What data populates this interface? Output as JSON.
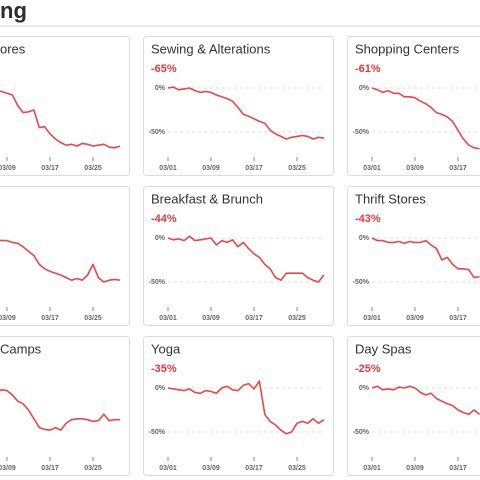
{
  "title": "ng",
  "chart_data": [
    {
      "type": "line",
      "title": "ores",
      "color": "#e8474c",
      "ylim": [
        -70,
        10
      ],
      "categories": [
        null,
        null,
        null,
        null,
        null,
        null,
        null,
        null,
        "03/09",
        null,
        null,
        null,
        null,
        null,
        null,
        null,
        "03/17",
        null,
        null,
        null,
        null,
        null,
        null,
        null,
        "03/25",
        null,
        null,
        null,
        null,
        null
      ],
      "values": [
        0,
        -1,
        -2,
        -1,
        0,
        -2,
        -3,
        -4,
        -6,
        -8,
        -20,
        -28,
        -27,
        -25,
        -45,
        -44,
        -52,
        -58,
        -62,
        -65,
        -64,
        -66,
        -63,
        -64,
        -66,
        -65,
        -64,
        -67,
        -68,
        -66
      ]
    },
    {
      "type": "line",
      "title": "Sewing & Alterations",
      "subtitle": "-65%",
      "color": "#e8474c",
      "ylim": [
        -70,
        10
      ],
      "yticks": [
        {
          "value": 0,
          "label": "0%"
        },
        {
          "value": -50,
          "label": "-50%"
        }
      ],
      "categories": [
        "03/01",
        null,
        null,
        null,
        null,
        null,
        null,
        null,
        "03/09",
        null,
        null,
        null,
        null,
        null,
        null,
        null,
        "03/17",
        null,
        null,
        null,
        null,
        null,
        null,
        null,
        "03/25",
        null,
        null,
        null,
        null,
        null
      ],
      "values": [
        0,
        1,
        -2,
        -1,
        0,
        -3,
        -5,
        -4,
        -5,
        -8,
        -10,
        -12,
        -15,
        -22,
        -30,
        -32,
        -35,
        -38,
        -40,
        -48,
        -52,
        -55,
        -58,
        -56,
        -55,
        -54,
        -55,
        -58,
        -56,
        -57
      ]
    },
    {
      "type": "line",
      "title": "Shopping Centers",
      "subtitle": "-61%",
      "color": "#e8474c",
      "ylim": [
        -70,
        10
      ],
      "yticks": [
        {
          "value": 0,
          "label": "0%"
        },
        {
          "value": -50,
          "label": "-50%"
        }
      ],
      "categories": [
        "03/01",
        null,
        null,
        null,
        null,
        null,
        null,
        null,
        "03/09",
        null,
        null,
        null,
        null,
        null,
        null,
        null,
        "03/17",
        null,
        null,
        null,
        null
      ],
      "values": [
        0,
        -2,
        -5,
        -3,
        -6,
        -6,
        -10,
        -10,
        -11,
        -15,
        -18,
        -22,
        -28,
        -30,
        -33,
        -38,
        -48,
        -58,
        -65,
        -68,
        -69
      ]
    },
    {
      "type": "line",
      "color": "#e8474c",
      "ylim": [
        -70,
        10
      ],
      "categories": [
        null,
        null,
        null,
        null,
        null,
        null,
        null,
        null,
        "03/09",
        null,
        null,
        null,
        null,
        null,
        null,
        null,
        "03/17",
        null,
        null,
        null,
        null,
        null,
        null,
        null,
        "03/25",
        null,
        null,
        null,
        null,
        null
      ],
      "values": [
        0,
        0,
        -1,
        -1,
        0,
        -2,
        -2,
        -3,
        -3,
        -5,
        -6,
        -10,
        -15,
        -20,
        -30,
        -35,
        -38,
        -40,
        -42,
        -45,
        -48,
        -46,
        -48,
        -42,
        -30,
        -45,
        -50,
        -48,
        -47,
        -48
      ]
    },
    {
      "type": "line",
      "title": "Breakfast & Brunch",
      "subtitle": "-44%",
      "color": "#e8474c",
      "ylim": [
        -70,
        10
      ],
      "yticks": [
        {
          "value": 0,
          "label": "0%"
        },
        {
          "value": -50,
          "label": "-50%"
        }
      ],
      "categories": [
        "03/01",
        null,
        null,
        null,
        null,
        null,
        null,
        null,
        "03/09",
        null,
        null,
        null,
        null,
        null,
        null,
        null,
        "03/17",
        null,
        null,
        null,
        null,
        null,
        null,
        null,
        "03/25",
        null,
        null,
        null,
        null,
        null
      ],
      "values": [
        0,
        -2,
        -1,
        -3,
        2,
        -3,
        -2,
        -1,
        0,
        -8,
        -3,
        -5,
        -2,
        -10,
        -5,
        -12,
        -18,
        -22,
        -30,
        -35,
        -45,
        -48,
        -40,
        -40,
        -40,
        -40,
        -45,
        -48,
        -50,
        -42
      ]
    },
    {
      "type": "line",
      "title": "Thrift Stores",
      "subtitle": "-43%",
      "color": "#e8474c",
      "ylim": [
        -70,
        10
      ],
      "yticks": [
        {
          "value": 0,
          "label": "0%"
        },
        {
          "value": -50,
          "label": "-50%"
        }
      ],
      "categories": [
        "03/01",
        null,
        null,
        null,
        null,
        null,
        null,
        null,
        "03/09",
        null,
        null,
        null,
        null,
        null,
        null,
        null,
        "03/17",
        null,
        null,
        null,
        null
      ],
      "values": [
        0,
        -3,
        -3,
        -5,
        -5,
        -4,
        -6,
        -4,
        -5,
        -5,
        -3,
        -8,
        -12,
        -25,
        -22,
        -30,
        -35,
        -35,
        -36,
        -45,
        -44
      ]
    },
    {
      "type": "line",
      "title": "Camps",
      "color": "#e8474c",
      "ylim": [
        -70,
        10
      ],
      "categories": [
        null,
        null,
        null,
        null,
        null,
        null,
        null,
        null,
        "03/09",
        null,
        null,
        null,
        null,
        null,
        null,
        null,
        "03/17",
        null,
        null,
        null,
        null,
        null,
        null,
        null,
        "03/25",
        null,
        null,
        null,
        null,
        null
      ],
      "values": [
        0,
        -2,
        0,
        -3,
        -2,
        0,
        -5,
        -2,
        -3,
        -8,
        -15,
        -18,
        -25,
        -35,
        -45,
        -47,
        -48,
        -45,
        -48,
        -40,
        -36,
        -35,
        -35,
        -36,
        -38,
        -37,
        -30,
        -37,
        -36,
        -36
      ]
    },
    {
      "type": "line",
      "title": "Yoga",
      "subtitle": "-35%",
      "color": "#e8474c",
      "ylim": [
        -70,
        10
      ],
      "yticks": [
        {
          "value": 0,
          "label": "0%"
        },
        {
          "value": -50,
          "label": "-50%"
        }
      ],
      "categories": [
        "03/01",
        null,
        null,
        null,
        null,
        null,
        null,
        null,
        "03/09",
        null,
        null,
        null,
        null,
        null,
        null,
        null,
        "03/17",
        null,
        null,
        null,
        null,
        null,
        null,
        null,
        "03/25",
        null,
        null,
        null,
        null,
        null
      ],
      "values": [
        0,
        -1,
        -2,
        -3,
        -1,
        -5,
        -6,
        -3,
        -4,
        -6,
        0,
        2,
        -2,
        -3,
        3,
        5,
        -1,
        8,
        -30,
        -38,
        -42,
        -48,
        -52,
        -50,
        -40,
        -38,
        -40,
        -35,
        -40,
        -36
      ]
    },
    {
      "type": "line",
      "title": "Day Spas",
      "subtitle": "-25%",
      "color": "#e8474c",
      "ylim": [
        -70,
        10
      ],
      "yticks": [
        {
          "value": 0,
          "label": "0%"
        },
        {
          "value": -50,
          "label": "-50%"
        }
      ],
      "categories": [
        "03/01",
        null,
        null,
        null,
        null,
        null,
        null,
        null,
        "03/09",
        null,
        null,
        null,
        null,
        null,
        null,
        null,
        "03/17",
        null,
        null,
        null,
        null
      ],
      "values": [
        0,
        2,
        -2,
        -1,
        -2,
        1,
        0,
        2,
        0,
        -5,
        -8,
        -6,
        -12,
        -15,
        -18,
        -20,
        -25,
        -28,
        -30,
        -25,
        -30
      ]
    }
  ]
}
